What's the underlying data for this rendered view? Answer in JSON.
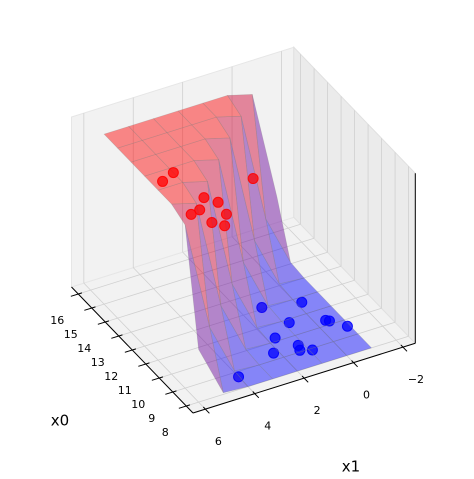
{
  "chart_data": {
    "type": "surface3d",
    "xlabel": "x0",
    "ylabel": "x1",
    "xlim": [
      7.5,
      16.5
    ],
    "ylim": [
      -2.5,
      6.5
    ],
    "zlim": [
      0,
      1
    ],
    "xticks": [
      8,
      9,
      10,
      11,
      12,
      13,
      14,
      15,
      16
    ],
    "yticks": [
      {
        "value": -2,
        "label": "−2"
      },
      0,
      2,
      4,
      6
    ],
    "surface": {
      "colors": [
        "#0000ff",
        "#ff0000"
      ],
      "x": [
        8,
        9,
        10,
        11,
        12,
        13,
        14,
        15
      ],
      "y": [
        -1,
        0,
        1,
        2,
        3,
        4,
        5,
        6
      ],
      "z": [
        [
          0,
          0,
          0,
          0,
          0,
          0,
          0.01,
          0.31
        ],
        [
          0,
          0,
          0,
          0,
          0,
          0.01,
          0.31,
          0.96
        ],
        [
          0,
          0,
          0,
          0,
          0.01,
          0.31,
          0.96,
          1
        ],
        [
          0,
          0,
          0,
          0.01,
          0.31,
          0.96,
          1,
          1
        ],
        [
          0,
          0,
          0.01,
          0.31,
          0.96,
          1,
          1,
          1
        ],
        [
          0,
          0.01,
          0.31,
          0.96,
          1,
          1,
          1,
          1
        ],
        [
          0.01,
          0.31,
          0.96,
          1,
          1,
          1,
          1,
          1
        ],
        [
          0.31,
          0.96,
          1,
          1,
          1,
          1,
          1,
          1
        ]
      ]
    },
    "series": [
      {
        "color": "#0000ff",
        "x": [
          8.7,
          12.1,
          11.7,
          10.8,
          10.2,
          10.3,
          10.2,
          9.6,
          9.4,
          9.1,
          9.4,
          8.9
        ],
        "y": [
          4.0,
          1.2,
          -0.2,
          0.8,
          1.7,
          -0.4,
          -0.5,
          -0.9,
          1.2,
          1.3,
          2.2,
          0.9
        ],
        "z": [
          0,
          0,
          0,
          0,
          0,
          0,
          0,
          0,
          0,
          0,
          0,
          0
        ]
      },
      {
        "color": "#ff0000",
        "x": [
          11.7,
          11.4,
          9.8,
          9.3,
          9.1,
          9.2,
          8.5,
          8.3,
          7.9,
          10.0
        ],
        "y": [
          5.0,
          5.6,
          4.8,
          4.5,
          5.7,
          5.3,
          4.6,
          5.3,
          5.0,
          2.7
        ],
        "z": [
          1,
          1,
          1,
          1,
          1,
          1,
          1,
          1,
          1,
          1
        ]
      }
    ]
  }
}
